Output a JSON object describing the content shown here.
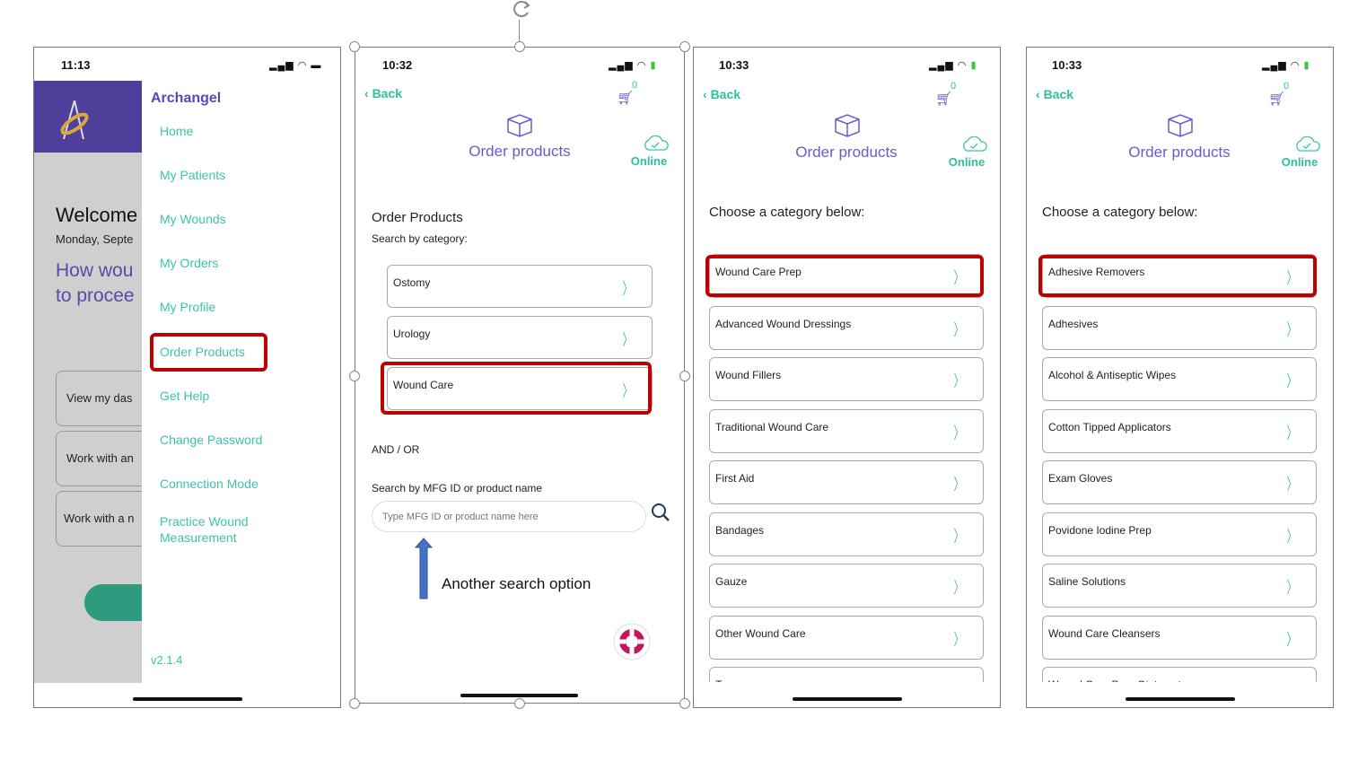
{
  "panel1": {
    "time": "11:13",
    "app_title": "Archangel",
    "menu": [
      "Home",
      "My Patients",
      "My Wounds",
      "My Orders",
      "My Profile",
      "Order Products",
      "Get Help",
      "Change Password",
      "Connection Mode",
      "Practice Wound Measurement"
    ],
    "version": "v2.1.4",
    "welcome": "Welcome",
    "date": "Monday, Septe",
    "prompt_line1": "How wou",
    "prompt_line2": "to procee",
    "buttons": [
      "View my das",
      "Work with an",
      "Work with a n"
    ]
  },
  "panel2": {
    "time": "10:32",
    "back": "Back",
    "cart_count": "0",
    "title": "Order products",
    "status": "Online",
    "heading": "Order Products",
    "subheading": "Search by category:",
    "categories": [
      "Ostomy",
      "Urology",
      "Wound Care"
    ],
    "and_or": "AND / OR",
    "search_label": "Search by MFG ID or product name",
    "search_placeholder": "Type MFG ID or product name here",
    "annotation": "Another search option"
  },
  "panel3": {
    "time": "10:33",
    "back": "Back",
    "cart_count": "0",
    "title": "Order products",
    "status": "Online",
    "heading": "Choose a category below:",
    "categories": [
      "Wound Care Prep",
      "Advanced Wound Dressings",
      "Wound Fillers",
      "Traditional Wound Care",
      "First Aid",
      "Bandages",
      "Gauze",
      "Other Wound Care",
      "Tapes"
    ]
  },
  "panel4": {
    "time": "10:33",
    "back": "Back",
    "cart_count": "0",
    "title": "Order products",
    "status": "Online",
    "heading": "Choose a category below:",
    "categories": [
      "Adhesive Removers",
      "Adhesives",
      "Alcohol & Antiseptic Wipes",
      "Cotton Tipped Applicators",
      "Exam Gloves",
      "Povidone Iodine Prep",
      "Saline Solutions",
      "Wound Care Cleansers",
      "Wound Care Prep Ointments"
    ]
  },
  "colors": {
    "brand_purple": "#4f3f9a",
    "accent_green": "#2fbf9a",
    "highlight_red": "#c00000",
    "annotation_arrow": "#4472c4"
  }
}
